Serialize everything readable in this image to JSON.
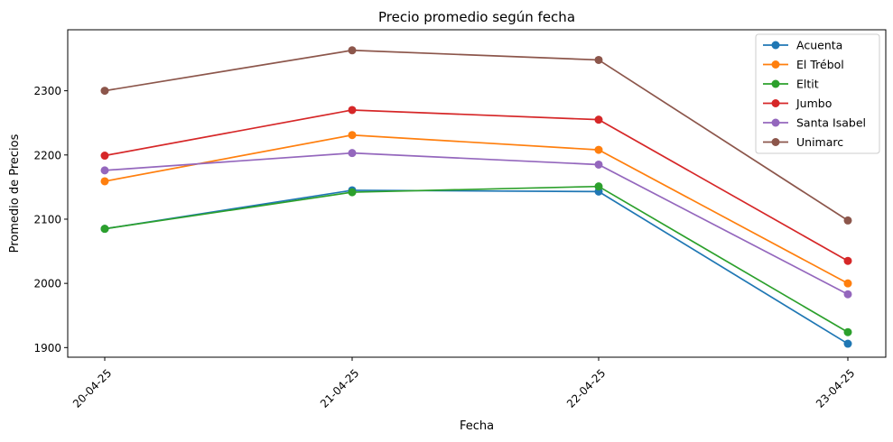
{
  "chart_data": {
    "type": "line",
    "title": "Precio promedio según fecha",
    "xlabel": "Fecha",
    "ylabel": "Promedio de Precios",
    "categories": [
      "20-04-25",
      "21-04-25",
      "22-04-25",
      "23-04-25"
    ],
    "ylim": [
      1885,
      2395
    ],
    "yticks": [
      1900,
      2000,
      2100,
      2200,
      2300
    ],
    "legend_position": "top-right",
    "grid": false,
    "series": [
      {
        "name": "Acuenta",
        "color": "#1f77b4",
        "values": [
          2085,
          2145,
          2143,
          1906
        ]
      },
      {
        "name": "El Trébol",
        "color": "#ff7f0e",
        "values": [
          2159,
          2231,
          2208,
          2000
        ]
      },
      {
        "name": "Eltit",
        "color": "#2ca02c",
        "values": [
          2085,
          2142,
          2151,
          1924
        ]
      },
      {
        "name": "Jumbo",
        "color": "#d62728",
        "values": [
          2199,
          2270,
          2255,
          2035
        ]
      },
      {
        "name": "Santa Isabel",
        "color": "#9467bd",
        "values": [
          2176,
          2203,
          2185,
          1983
        ]
      },
      {
        "name": "Unimarc",
        "color": "#8c564b",
        "values": [
          2300,
          2363,
          2348,
          2098
        ]
      }
    ]
  }
}
